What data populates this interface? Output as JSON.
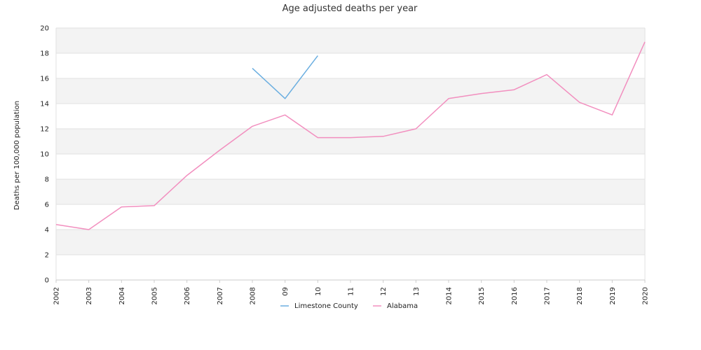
{
  "chart_data": {
    "type": "line",
    "title": "Age adjusted deaths per year",
    "xlabel": "",
    "ylabel": "Deaths per 100,000 population",
    "x": [
      "2002",
      "2003",
      "2004",
      "2005",
      "2006",
      "2007",
      "2008",
      "09",
      "10",
      "11",
      "12",
      "13",
      "2014",
      "2015",
      "2016",
      "2017",
      "2018",
      "2019",
      "2020"
    ],
    "ylim": [
      0,
      20
    ],
    "yticks": [
      0,
      2,
      4,
      6,
      8,
      10,
      12,
      14,
      16,
      18,
      20
    ],
    "grid": "horizontal bands",
    "legend": "bottom-center",
    "series": [
      {
        "name": "Limestone County",
        "color": "#6aaee0",
        "values": [
          null,
          null,
          null,
          null,
          null,
          null,
          16.8,
          14.4,
          17.8,
          null,
          null,
          null,
          null,
          null,
          null,
          null,
          null,
          null,
          null
        ]
      },
      {
        "name": "Alabama",
        "color": "#f28fbf",
        "values": [
          4.4,
          4.0,
          5.8,
          5.9,
          8.3,
          10.3,
          12.2,
          13.1,
          11.3,
          11.3,
          11.4,
          12.0,
          14.4,
          14.8,
          15.1,
          16.3,
          14.1,
          13.1,
          18.9
        ]
      }
    ]
  }
}
